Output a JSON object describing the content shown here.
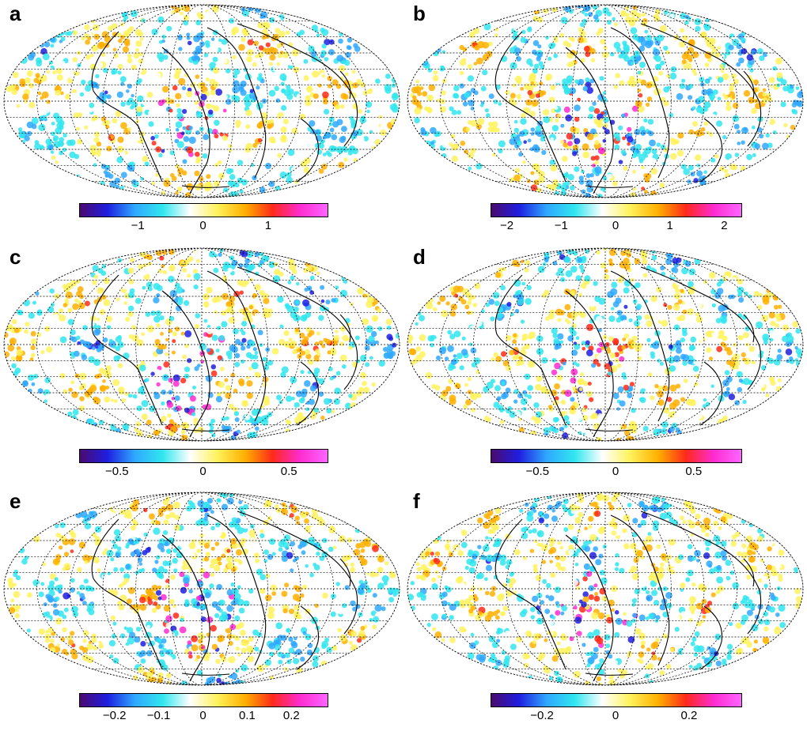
{
  "panels": [
    {
      "letter": "a",
      "ticks": [
        "-1",
        "0",
        "1"
      ],
      "tick_values": [
        -1,
        0,
        1
      ],
      "range": [
        -1.9,
        1.9
      ]
    },
    {
      "letter": "b",
      "ticks": [
        "-2",
        "-1",
        "0",
        "1",
        "2"
      ],
      "tick_values": [
        -2,
        -1,
        0,
        1,
        2
      ],
      "range": [
        -2.3,
        2.3
      ]
    },
    {
      "letter": "c",
      "ticks": [
        "-0.5",
        "0",
        "0.5"
      ],
      "tick_values": [
        -0.5,
        0,
        0.5
      ],
      "range": [
        -0.72,
        0.72
      ]
    },
    {
      "letter": "d",
      "ticks": [
        "-0.5",
        "0",
        "0.5"
      ],
      "tick_values": [
        -0.5,
        0,
        0.5
      ],
      "range": [
        -0.8,
        0.8
      ]
    },
    {
      "letter": "e",
      "ticks": [
        "-0.2",
        "-0.1",
        "0",
        "0.1",
        "0.2"
      ],
      "tick_values": [
        -0.2,
        -0.1,
        0,
        0.1,
        0.2
      ],
      "range": [
        -0.28,
        0.28
      ]
    },
    {
      "letter": "f",
      "ticks": [
        "-0.2",
        "0",
        "0.2"
      ],
      "tick_values": [
        -0.2,
        0,
        0.2
      ],
      "range": [
        -0.34,
        0.34
      ]
    }
  ],
  "colormap": [
    "#4b0a6e",
    "#1e1ee0",
    "#2fa8ff",
    "#30e6ee",
    "#ffffff",
    "#fff25a",
    "#ffb000",
    "#ff2a1a",
    "#ff2bd0",
    "#ff66ff"
  ]
}
